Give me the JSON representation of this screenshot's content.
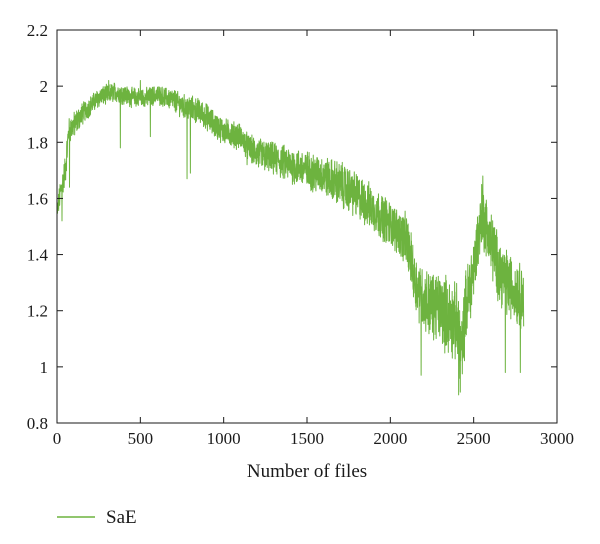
{
  "chart_data": {
    "type": "line",
    "xlabel": "Number of files",
    "ylabel": "",
    "xlim": [
      0,
      3000
    ],
    "ylim": [
      0.8,
      2.2
    ],
    "x_ticks": [
      "0",
      "500",
      "1000",
      "1500",
      "2000",
      "2500",
      "3000"
    ],
    "y_ticks": [
      "0.8",
      "1",
      "1.2",
      "1.4",
      "1.6",
      "1.8",
      "2",
      "2.2"
    ],
    "grid": false,
    "legend_position": "bottom-left",
    "series": [
      {
        "name": "SaE",
        "color": "#6db33f",
        "n_points": 2800,
        "x": [
          0,
          20,
          50,
          70,
          100,
          150,
          200,
          250,
          300,
          350,
          400,
          450,
          500,
          550,
          600,
          650,
          700,
          750,
          800,
          850,
          900,
          950,
          1000,
          1050,
          1100,
          1150,
          1200,
          1300,
          1400,
          1500,
          1600,
          1700,
          1800,
          1900,
          2000,
          2050,
          2100,
          2150,
          2200,
          2250,
          2300,
          2350,
          2400,
          2430,
          2450,
          2500,
          2550,
          2600,
          2650,
          2700,
          2750,
          2800
        ],
        "y": [
          1.55,
          1.62,
          1.7,
          1.84,
          1.86,
          1.9,
          1.93,
          1.96,
          1.97,
          1.98,
          1.97,
          1.96,
          1.96,
          1.96,
          1.97,
          1.96,
          1.95,
          1.93,
          1.92,
          1.91,
          1.89,
          1.86,
          1.84,
          1.83,
          1.82,
          1.78,
          1.76,
          1.74,
          1.72,
          1.7,
          1.68,
          1.65,
          1.61,
          1.56,
          1.51,
          1.48,
          1.45,
          1.3,
          1.24,
          1.22,
          1.21,
          1.18,
          1.15,
          1.05,
          1.2,
          1.35,
          1.55,
          1.45,
          1.35,
          1.3,
          1.27,
          1.25
        ],
        "noise": [
          0.03,
          0.04,
          0.05,
          0.04,
          0.04,
          0.035,
          0.03,
          0.03,
          0.03,
          0.03,
          0.03,
          0.03,
          0.03,
          0.03,
          0.03,
          0.03,
          0.035,
          0.035,
          0.04,
          0.04,
          0.04,
          0.04,
          0.04,
          0.04,
          0.04,
          0.04,
          0.05,
          0.05,
          0.055,
          0.06,
          0.06,
          0.07,
          0.07,
          0.07,
          0.07,
          0.07,
          0.08,
          0.09,
          0.1,
          0.1,
          0.11,
          0.12,
          0.12,
          0.12,
          0.12,
          0.1,
          0.1,
          0.1,
          0.1,
          0.1,
          0.1,
          0.1
        ],
        "dips": [
          {
            "x": 30,
            "y": 1.52
          },
          {
            "x": 75,
            "y": 1.64
          },
          {
            "x": 380,
            "y": 1.78
          },
          {
            "x": 560,
            "y": 1.82
          },
          {
            "x": 780,
            "y": 1.67
          },
          {
            "x": 800,
            "y": 1.69
          },
          {
            "x": 1140,
            "y": 1.72
          },
          {
            "x": 2185,
            "y": 0.97
          },
          {
            "x": 2410,
            "y": 0.9
          },
          {
            "x": 2420,
            "y": 0.91
          },
          {
            "x": 2690,
            "y": 0.98
          },
          {
            "x": 2780,
            "y": 0.98
          }
        ],
        "peaks": [
          {
            "x": 310,
            "y": 2.02
          },
          {
            "x": 500,
            "y": 2.02
          },
          {
            "x": 2555,
            "y": 1.68
          }
        ]
      }
    ]
  }
}
